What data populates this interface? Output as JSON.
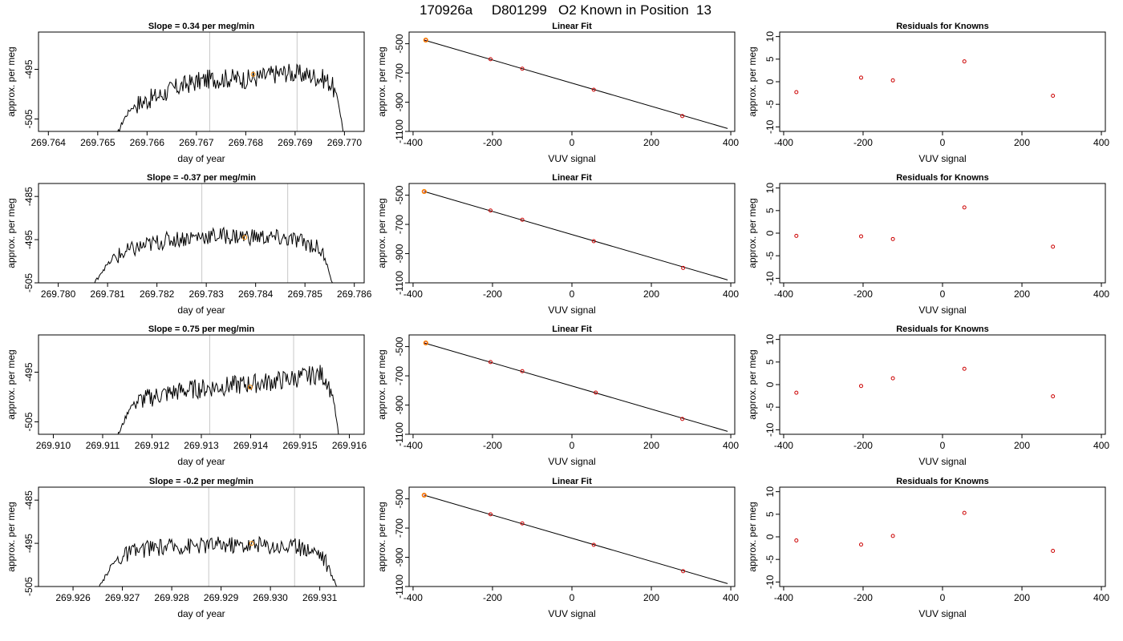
{
  "figure": {
    "title": "170926a     D801299   O2 Known in Position  13"
  },
  "chart_data": [
    {
      "type": "line",
      "title": "Slope =  0.34  per meg/min",
      "xlabel": "day of year",
      "ylabel": "approx. per meg",
      "xlim": [
        269.7638,
        269.7704
      ],
      "ylim": [
        -507.5,
        -487.5
      ],
      "xticks": [
        "269.764",
        "269.765",
        "269.766",
        "269.767",
        "269.768",
        "269.769",
        "269.770"
      ],
      "yticks": [
        "-505",
        "-495"
      ],
      "vlines": [
        269.76727,
        269.76904
      ],
      "marker": {
        "x": 269.76815,
        "y": -496.0
      },
      "series": [
        {
          "x_start": 269.7654,
          "x_end": 269.77,
          "noise": 4,
          "values": [
            -508,
            -505,
            -503,
            -502,
            -501.5,
            -501,
            -500.5,
            -500,
            -499.3,
            -498.8,
            -498.3,
            -497.9,
            -497.6,
            -497.3,
            -497.0,
            -496.9,
            -496.9,
            -496.8,
            -496.8,
            -496.9,
            -497.0,
            -496.8,
            -496.6,
            -496.3,
            -496.0,
            -495.8,
            -495.6,
            -495.8,
            -496.0,
            -496.1,
            -496.3,
            -496.6,
            -497.0,
            -498.0,
            -501,
            -509
          ]
        }
      ]
    },
    {
      "type": "line",
      "title": "Linear Fit",
      "xlabel": "VUV signal",
      "ylabel": "approx. per meg",
      "xlim": [
        -410,
        410
      ],
      "ylim": [
        -1100,
        -420
      ],
      "xticks": [
        "-400",
        "-200",
        "0",
        "200",
        "400"
      ],
      "yticks": [
        "-500",
        "-700",
        "-900",
        "-1100"
      ],
      "fit": [
        [
          -372,
          -475
        ],
        [
          392,
          -1080
        ]
      ],
      "points": [
        [
          -368,
          -475
        ],
        [
          -205,
          -606
        ],
        [
          -125,
          -671
        ],
        [
          55,
          -815
        ],
        [
          278,
          -995
        ]
      ],
      "highlight": [
        -368,
        -475
      ]
    },
    {
      "type": "scatter",
      "title": "Residuals for Knowns",
      "xlabel": "VUV signal",
      "ylabel": "approx. per meg",
      "xlim": [
        -410,
        410
      ],
      "ylim": [
        -11,
        11
      ],
      "xticks": [
        "-400",
        "-200",
        "0",
        "200",
        "400"
      ],
      "yticks": [
        "-10",
        "-5",
        "0",
        "5",
        "10"
      ],
      "points": [
        [
          -368,
          -2.3
        ],
        [
          -205,
          0.9
        ],
        [
          -125,
          0.3
        ],
        [
          55,
          4.5
        ],
        [
          278,
          -3.1
        ]
      ]
    },
    {
      "type": "line",
      "title": "Slope =  -0.37  per meg/min",
      "xlabel": "day of year",
      "ylabel": "approx. per meg",
      "xlim": [
        269.7796,
        269.7862
      ],
      "ylim": [
        -505,
        -482
      ],
      "xticks": [
        "269.780",
        "269.781",
        "269.782",
        "269.783",
        "269.784",
        "269.785",
        "269.786"
      ],
      "yticks": [
        "-505",
        "-495",
        "-485"
      ],
      "vlines": [
        269.78291,
        269.78465
      ],
      "marker": {
        "x": 269.78378,
        "y": -494.5
      },
      "series": [
        {
          "x_start": 269.7807,
          "x_end": 269.7856,
          "noise": 4,
          "values": [
            -506,
            -503,
            -501,
            -499.5,
            -498.5,
            -497.8,
            -497.2,
            -496.7,
            -496.2,
            -495.8,
            -495.4,
            -495.1,
            -494.9,
            -494.7,
            -494.5,
            -494.3,
            -494.2,
            -494.2,
            -494.1,
            -494.1,
            -494.2,
            -494.2,
            -494.3,
            -494.3,
            -494.4,
            -494.5,
            -494.6,
            -494.7,
            -494.9,
            -495.1,
            -495.4,
            -495.8,
            -496.4,
            -497.5,
            -501,
            -507
          ]
        }
      ]
    },
    {
      "type": "line",
      "title": "Linear Fit",
      "xlabel": "VUV signal",
      "ylabel": "approx. per meg",
      "xlim": [
        -410,
        410
      ],
      "ylim": [
        -1100,
        -420
      ],
      "xticks": [
        "-400",
        "-200",
        "0",
        "200",
        "400"
      ],
      "yticks": [
        "-500",
        "-700",
        "-900",
        "-1100"
      ],
      "fit": [
        [
          -372,
          -475
        ],
        [
          392,
          -1080
        ]
      ],
      "points": [
        [
          -372,
          -475
        ],
        [
          -205,
          -605
        ],
        [
          -125,
          -668
        ],
        [
          55,
          -815
        ],
        [
          280,
          -998
        ]
      ],
      "highlight": [
        -372,
        -475
      ]
    },
    {
      "type": "scatter",
      "title": "Residuals for Knowns",
      "xlabel": "VUV signal",
      "ylabel": "approx. per meg",
      "xlim": [
        -410,
        410
      ],
      "ylim": [
        -11,
        11
      ],
      "xticks": [
        "-400",
        "-200",
        "0",
        "200",
        "400"
      ],
      "yticks": [
        "-10",
        "-5",
        "0",
        "5",
        "10"
      ],
      "points": [
        [
          -368,
          -0.6
        ],
        [
          -205,
          -0.7
        ],
        [
          -125,
          -1.3
        ],
        [
          55,
          5.7
        ],
        [
          278,
          -3.0
        ]
      ]
    },
    {
      "type": "line",
      "title": "Slope =  0.75  per meg/min",
      "xlabel": "day of year",
      "ylabel": "approx. per meg",
      "xlim": [
        269.9097,
        269.9163
      ],
      "ylim": [
        -507.5,
        -487.5
      ],
      "xticks": [
        "269.910",
        "269.911",
        "269.912",
        "269.913",
        "269.914",
        "269.915",
        "269.916"
      ],
      "yticks": [
        "-505",
        "-495"
      ],
      "vlines": [
        269.91317,
        269.91487
      ],
      "marker": {
        "x": 269.91399,
        "y": -498.0
      },
      "series": [
        {
          "x_start": 269.9113,
          "x_end": 269.9158,
          "noise": 4,
          "values": [
            -508,
            -505,
            -502,
            -501,
            -500.5,
            -500.2,
            -499.8,
            -499.5,
            -499.3,
            -499.0,
            -498.8,
            -498.6,
            -498.4,
            -498.3,
            -498.2,
            -498.0,
            -497.9,
            -497.8,
            -497.7,
            -497.6,
            -497.5,
            -497.3,
            -497.2,
            -497.1,
            -496.9,
            -496.8,
            -496.6,
            -496.4,
            -496.2,
            -496.0,
            -495.8,
            -495.5,
            -495.4,
            -496.5,
            -500,
            -509
          ]
        }
      ]
    },
    {
      "type": "line",
      "title": "Linear Fit",
      "xlabel": "VUV signal",
      "ylabel": "approx. per meg",
      "xlim": [
        -410,
        410
      ],
      "ylim": [
        -1100,
        -420
      ],
      "xticks": [
        "-400",
        "-200",
        "0",
        "200",
        "400"
      ],
      "yticks": [
        "-500",
        "-700",
        "-900",
        "-1100"
      ],
      "fit": [
        [
          -372,
          -475
        ],
        [
          392,
          -1080
        ]
      ],
      "points": [
        [
          -368,
          -475
        ],
        [
          -205,
          -606
        ],
        [
          -125,
          -668
        ],
        [
          60,
          -815
        ],
        [
          278,
          -995
        ]
      ],
      "highlight": [
        -368,
        -475
      ]
    },
    {
      "type": "scatter",
      "title": "Residuals for Knowns",
      "xlabel": "VUV signal",
      "ylabel": "approx. per meg",
      "xlim": [
        -410,
        410
      ],
      "ylim": [
        -11,
        11
      ],
      "xticks": [
        "-400",
        "-200",
        "0",
        "200",
        "400"
      ],
      "yticks": [
        "-10",
        "-5",
        "0",
        "5",
        "10"
      ],
      "points": [
        [
          -368,
          -1.8
        ],
        [
          -205,
          -0.3
        ],
        [
          -125,
          1.4
        ],
        [
          55,
          3.5
        ],
        [
          278,
          -2.6
        ]
      ]
    },
    {
      "type": "line",
      "title": "Slope =  -0.2  per meg/min",
      "xlabel": "day of year",
      "ylabel": "approx. per meg",
      "xlim": [
        269.9253,
        269.9319
      ],
      "ylim": [
        -505,
        -482
      ],
      "xticks": [
        "269.926",
        "269.927",
        "269.928",
        "269.929",
        "269.930",
        "269.931"
      ],
      "yticks": [
        "-505",
        "-495",
        "-485"
      ],
      "vlines": [
        269.92875,
        269.93049
      ],
      "marker": {
        "x": 269.92962,
        "y": -495.0
      },
      "series": [
        {
          "x_start": 269.9265,
          "x_end": 269.9314,
          "noise": 4,
          "values": [
            -506,
            -503,
            -500,
            -498.5,
            -497.6,
            -497.0,
            -496.6,
            -496.3,
            -496.1,
            -495.9,
            -495.8,
            -495.7,
            -495.6,
            -495.5,
            -495.4,
            -495.4,
            -495.3,
            -495.3,
            -495.2,
            -495.2,
            -495.3,
            -495.3,
            -495.4,
            -495.4,
            -495.5,
            -495.5,
            -495.6,
            -495.7,
            -495.8,
            -495.9,
            -496.1,
            -496.4,
            -497.0,
            -499,
            -503,
            -506
          ]
        }
      ]
    },
    {
      "type": "line",
      "title": "Linear Fit",
      "xlabel": "VUV signal",
      "ylabel": "approx. per meg",
      "xlim": [
        -410,
        410
      ],
      "ylim": [
        -1100,
        -420
      ],
      "xticks": [
        "-400",
        "-200",
        "0",
        "200",
        "400"
      ],
      "yticks": [
        "-500",
        "-700",
        "-900",
        "-1100"
      ],
      "fit": [
        [
          -372,
          -475
        ],
        [
          392,
          -1080
        ]
      ],
      "points": [
        [
          -372,
          -475
        ],
        [
          -205,
          -606
        ],
        [
          -125,
          -668
        ],
        [
          55,
          -815
        ],
        [
          280,
          -995
        ]
      ],
      "highlight": [
        -372,
        -475
      ]
    },
    {
      "type": "scatter",
      "title": "Residuals for Knowns",
      "xlabel": "VUV signal",
      "ylabel": "approx. per meg",
      "xlim": [
        -410,
        410
      ],
      "ylim": [
        -11,
        11
      ],
      "xticks": [
        "-400",
        "-200",
        "0",
        "200",
        "400"
      ],
      "yticks": [
        "-10",
        "-5",
        "0",
        "5",
        "10"
      ],
      "points": [
        [
          -368,
          -0.8
        ],
        [
          -205,
          -1.7
        ],
        [
          -125,
          0.2
        ],
        [
          55,
          5.3
        ],
        [
          278,
          -3.1
        ]
      ]
    }
  ]
}
